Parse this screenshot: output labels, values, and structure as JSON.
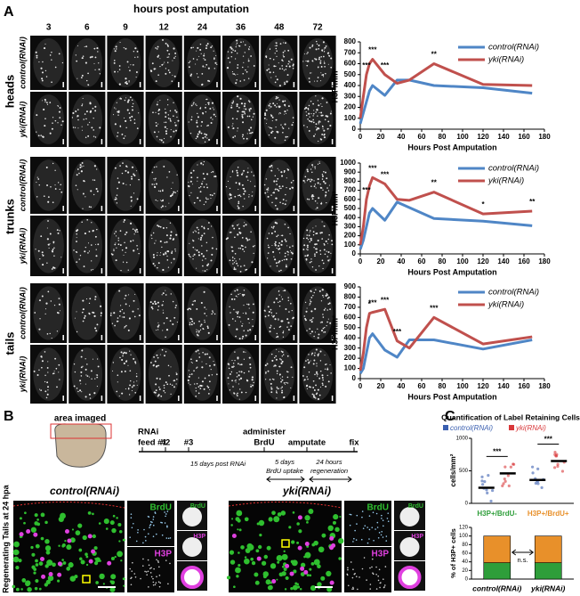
{
  "figure": {
    "panel_labels": [
      "A",
      "B",
      "C"
    ],
    "a": {
      "header": "hours post amputation",
      "columns": [
        "3",
        "6",
        "9",
        "12",
        "24",
        "36",
        "48",
        "72"
      ],
      "groups": [
        "heads",
        "trunks",
        "tails"
      ],
      "rows": [
        "control(RNAi)",
        "yki(RNAi)"
      ]
    },
    "b": {
      "area": "area imaged",
      "timeline": [
        [
          "RNAi",
          "feed #1"
        ],
        [
          "#2"
        ],
        [
          "#3"
        ],
        [
          "administer",
          "BrdU"
        ],
        [
          "amputate"
        ],
        [
          "fix"
        ]
      ],
      "spans": [
        [
          "15 days post RNAi"
        ],
        [
          "5 days",
          "BrdU uptake"
        ],
        [
          "24 hours",
          "regeneration"
        ]
      ],
      "conditions": [
        "control(RNAi)",
        "yki(RNAi)"
      ],
      "side": "Regenerating Tails at 24 hpa",
      "channels": [
        "BrdU",
        "H3P"
      ]
    },
    "c_title": "Quantification of Label Retaining Cells"
  },
  "chart_data": [
    {
      "type": "line",
      "ylabel": "H3P/mm²",
      "xlabel": "Hours Post Amputation",
      "x": [
        0,
        3,
        6,
        9,
        12,
        24,
        36,
        48,
        72,
        120,
        168
      ],
      "xlim": [
        0,
        180
      ],
      "xticks": [
        0,
        20,
        40,
        60,
        80,
        100,
        120,
        140,
        160,
        180
      ],
      "ylim": [
        0,
        800
      ],
      "yticks": [
        0,
        100,
        200,
        300,
        400,
        500,
        600,
        700,
        800
      ],
      "series": [
        {
          "name": "control(RNAi)",
          "color": "#4f86c6",
          "values": [
            50,
            150,
            250,
            350,
            400,
            310,
            450,
            450,
            400,
            380,
            330
          ]
        },
        {
          "name": "yki(RNAi)",
          "color": "#c0504d",
          "values": [
            100,
            300,
            500,
            600,
            640,
            500,
            420,
            450,
            600,
            410,
            400
          ]
        }
      ],
      "annotations": [
        {
          "x": 6,
          "text": "***"
        },
        {
          "x": 12,
          "text": "***"
        },
        {
          "x": 24,
          "text": "***"
        },
        {
          "x": 72,
          "text": "**"
        }
      ]
    },
    {
      "type": "line",
      "ylabel": "H3P/mm²",
      "xlabel": "Hours Post Amputation",
      "x": [
        0,
        3,
        6,
        9,
        12,
        24,
        36,
        48,
        72,
        120,
        168
      ],
      "xlim": [
        0,
        180
      ],
      "xticks": [
        0,
        20,
        40,
        60,
        80,
        100,
        120,
        140,
        160,
        180
      ],
      "ylim": [
        0,
        1000
      ],
      "yticks": [
        0,
        100,
        200,
        300,
        400,
        500,
        600,
        700,
        800,
        900,
        1000
      ],
      "series": [
        {
          "name": "control(RNAi)",
          "color": "#4f86c6",
          "values": [
            50,
            150,
            300,
            450,
            500,
            370,
            570,
            510,
            390,
            360,
            310
          ]
        },
        {
          "name": "yki(RNAi)",
          "color": "#c0504d",
          "values": [
            100,
            300,
            600,
            750,
            840,
            770,
            600,
            590,
            680,
            440,
            470
          ]
        }
      ],
      "annotations": [
        {
          "x": 6,
          "text": "***"
        },
        {
          "x": 12,
          "text": "***"
        },
        {
          "x": 24,
          "text": "***"
        },
        {
          "x": 72,
          "text": "**"
        },
        {
          "x": 120,
          "text": "*"
        },
        {
          "x": 168,
          "text": "**"
        }
      ]
    },
    {
      "type": "line",
      "ylabel": "H3P/mm²",
      "xlabel": "Hours Post Amputation",
      "x": [
        0,
        3,
        6,
        9,
        12,
        24,
        36,
        48,
        72,
        120,
        168
      ],
      "xlim": [
        0,
        180
      ],
      "xticks": [
        0,
        20,
        40,
        60,
        80,
        100,
        120,
        140,
        160,
        180
      ],
      "ylim": [
        0,
        900
      ],
      "yticks": [
        0,
        100,
        200,
        300,
        400,
        500,
        600,
        700,
        800,
        900
      ],
      "series": [
        {
          "name": "control(RNAi)",
          "color": "#4f86c6",
          "values": [
            50,
            100,
            250,
            400,
            440,
            280,
            210,
            380,
            380,
            290,
            380
          ]
        },
        {
          "name": "yki(RNAi)",
          "color": "#c0504d",
          "values": [
            80,
            250,
            500,
            640,
            650,
            680,
            370,
            300,
            600,
            340,
            410
          ]
        }
      ],
      "annotations": [
        {
          "x": 9,
          "text": "*"
        },
        {
          "x": 12,
          "text": "***"
        },
        {
          "x": 24,
          "text": "***"
        },
        {
          "x": 36,
          "text": "***"
        },
        {
          "x": 72,
          "text": "***"
        }
      ]
    },
    {
      "type": "dot",
      "ylabel": "cells/mm²",
      "categories": [
        "H3P+/BrdU-",
        "H3P+/BrdU+"
      ],
      "category_colors": [
        "#2e9e3a",
        "#e8902a"
      ],
      "ylim": [
        0,
        1000
      ],
      "yticks": [
        0,
        500,
        1000
      ],
      "series": [
        {
          "name": "control(RNAi)",
          "color": "#3a5fb0",
          "values": [
            240,
            360
          ]
        },
        {
          "name": "yki(RNAi)",
          "color": "#d9383a",
          "values": [
            460,
            650
          ]
        }
      ],
      "annotations": [
        "***",
        "***"
      ]
    },
    {
      "type": "stacked-bar",
      "ylabel": "% of H3P+ cells",
      "categories": [
        "control(RNAi)",
        "yki(RNAi)"
      ],
      "ylim": [
        0,
        120
      ],
      "yticks": [
        0,
        20,
        40,
        60,
        80,
        100,
        120
      ],
      "series": [
        {
          "color": "#2e9e3a",
          "values": [
            38,
            38
          ]
        },
        {
          "color": "#e8902a",
          "values": [
            62,
            62
          ]
        }
      ],
      "annotation": "n.s."
    }
  ]
}
